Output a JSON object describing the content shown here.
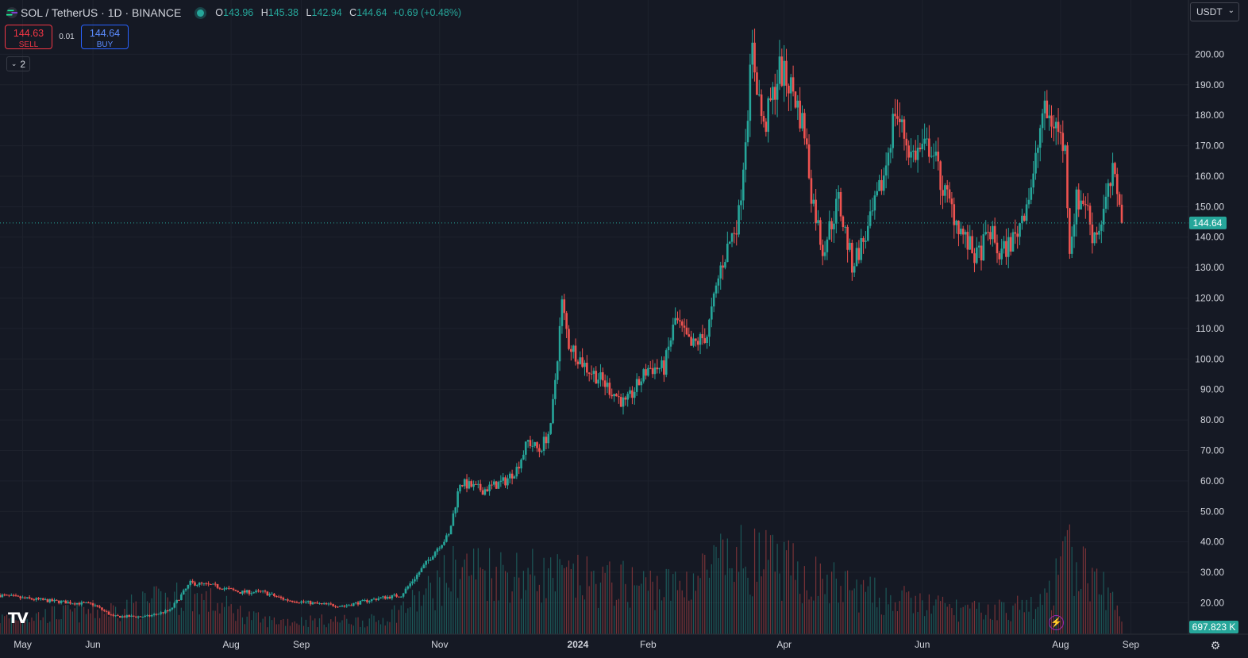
{
  "header": {
    "symbol": "SOL / TetherUS · 1D · BINANCE",
    "ohlc": [
      {
        "label": "O",
        "value": "143.96"
      },
      {
        "label": "H",
        "value": "145.38"
      },
      {
        "label": "L",
        "value": "142.94"
      },
      {
        "label": "C",
        "value": "144.64"
      },
      {
        "label": "",
        "value": "+0.69 (+0.48%)"
      }
    ]
  },
  "trade": {
    "sell_price": "144.63",
    "sell_label": "SELL",
    "spread": "0.01",
    "buy_price": "144.64",
    "buy_label": "BUY"
  },
  "indicators_toggle": "2",
  "currency_select": "USDT",
  "logo_text": "TV",
  "colors": {
    "up": "#26a69a",
    "down": "#ef5350",
    "background": "#151924",
    "grid": "#1e222d",
    "axis_text": "#d1d4dc",
    "last_price": "#26a69a"
  },
  "chart_data": {
    "type": "candlestick",
    "series_name": "SOL / TetherUS",
    "y_axis": {
      "ticks": [
        20,
        30,
        40,
        50,
        60,
        70,
        80,
        90,
        100,
        110,
        120,
        130,
        140,
        150,
        160,
        170,
        180,
        190,
        200
      ],
      "tick_labels": [
        "20.00",
        "30.00",
        "40.00",
        "50.00",
        "60.00",
        "70.00",
        "80.00",
        "90.00",
        "100.00",
        "110.00",
        "120.00",
        "130.00",
        "140.00",
        "150.00",
        "160.00",
        "170.00",
        "180.00",
        "190.00",
        "200.00"
      ],
      "range": [
        11,
        210
      ]
    },
    "x_axis": {
      "labels": [
        "May",
        "Jun",
        "Aug",
        "Sep",
        "Nov",
        "2024",
        "Feb",
        "Apr",
        "Jun",
        "Aug",
        "Sep"
      ],
      "label_dates": [
        "2023-05-01",
        "2023-06-01",
        "2023-08-01",
        "2023-09-01",
        "2023-11-01",
        "2024-01-01",
        "2024-02-01",
        "2024-04-01",
        "2024-06-01",
        "2024-08-01",
        "2024-09-01"
      ],
      "range": [
        "2023-04-21",
        "2024-10-22"
      ]
    },
    "last_price": 144.64,
    "last_price_label": "144.64",
    "volume_label": "697.823 K",
    "price_path": [
      [
        "2023-04-21",
        22.5
      ],
      [
        "2023-05-01",
        21.5
      ],
      [
        "2023-05-15",
        20.5
      ],
      [
        "2023-06-01",
        19.5
      ],
      [
        "2023-06-10",
        15.5
      ],
      [
        "2023-06-25",
        15.5
      ],
      [
        "2023-07-05",
        17.5
      ],
      [
        "2023-07-14",
        26.5
      ],
      [
        "2023-07-25",
        25.5
      ],
      [
        "2023-08-05",
        23.5
      ],
      [
        "2023-08-15",
        23.5
      ],
      [
        "2023-08-25",
        21
      ],
      [
        "2023-09-10",
        19.5
      ],
      [
        "2023-09-20",
        19
      ],
      [
        "2023-10-05",
        21.5
      ],
      [
        "2023-10-15",
        22.5
      ],
      [
        "2023-10-24",
        31
      ],
      [
        "2023-11-01",
        39
      ],
      [
        "2023-11-05",
        42
      ],
      [
        "2023-11-10",
        59.5
      ],
      [
        "2023-11-20",
        57
      ],
      [
        "2023-11-30",
        60
      ],
      [
        "2023-12-05",
        64
      ],
      [
        "2023-12-10",
        73
      ],
      [
        "2023-12-15",
        70
      ],
      [
        "2023-12-20",
        77
      ],
      [
        "2023-12-25",
        118
      ],
      [
        "2023-12-28",
        105
      ],
      [
        "2024-01-05",
        97
      ],
      [
        "2024-01-10",
        94
      ],
      [
        "2024-01-22",
        85
      ],
      [
        "2024-02-01",
        97
      ],
      [
        "2024-02-08",
        97
      ],
      [
        "2024-02-13",
        113
      ],
      [
        "2024-02-20",
        104
      ],
      [
        "2024-02-27",
        108
      ],
      [
        "2024-03-04",
        130
      ],
      [
        "2024-03-12",
        147
      ],
      [
        "2024-03-18",
        201
      ],
      [
        "2024-03-23",
        175
      ],
      [
        "2024-03-30",
        195
      ],
      [
        "2024-04-05",
        188
      ],
      [
        "2024-04-10",
        175
      ],
      [
        "2024-04-13",
        155
      ],
      [
        "2024-04-18",
        136
      ],
      [
        "2024-04-25",
        152
      ],
      [
        "2024-05-01",
        131
      ],
      [
        "2024-05-08",
        142
      ],
      [
        "2024-05-15",
        160
      ],
      [
        "2024-05-20",
        182
      ],
      [
        "2024-05-27",
        167
      ],
      [
        "2024-06-05",
        170
      ],
      [
        "2024-06-10",
        156
      ],
      [
        "2024-06-20",
        139
      ],
      [
        "2024-06-25",
        133
      ],
      [
        "2024-07-01",
        142
      ],
      [
        "2024-07-05",
        134
      ],
      [
        "2024-07-12",
        140
      ],
      [
        "2024-07-20",
        159
      ],
      [
        "2024-07-24",
        181
      ],
      [
        "2024-07-30",
        177
      ],
      [
        "2024-08-03",
        168
      ],
      [
        "2024-08-05",
        137
      ],
      [
        "2024-08-08",
        152
      ],
      [
        "2024-08-12",
        152
      ],
      [
        "2024-08-15",
        141
      ],
      [
        "2024-08-18",
        143
      ],
      [
        "2024-08-24",
        160
      ],
      [
        "2024-08-27",
        154
      ],
      [
        "2024-08-28",
        144.64
      ]
    ],
    "volume_path": [
      [
        "2023-04-21",
        1.4
      ],
      [
        "2023-06-10",
        2.2
      ],
      [
        "2023-07-14",
        3.5
      ],
      [
        "2023-08-15",
        1.2
      ],
      [
        "2023-10-05",
        1.2
      ],
      [
        "2023-10-24",
        3.2
      ],
      [
        "2023-11-10",
        6.0
      ],
      [
        "2023-12-15",
        5.2
      ],
      [
        "2024-01-10",
        4.6
      ],
      [
        "2024-02-13",
        4.2
      ],
      [
        "2024-03-04",
        6.2
      ],
      [
        "2024-03-18",
        6.8
      ],
      [
        "2024-04-13",
        5.0
      ],
      [
        "2024-05-15",
        3.2
      ],
      [
        "2024-06-25",
        2.0
      ],
      [
        "2024-07-24",
        2.6
      ],
      [
        "2024-08-05",
        7.0
      ],
      [
        "2024-08-28",
        2.2
      ]
    ]
  }
}
